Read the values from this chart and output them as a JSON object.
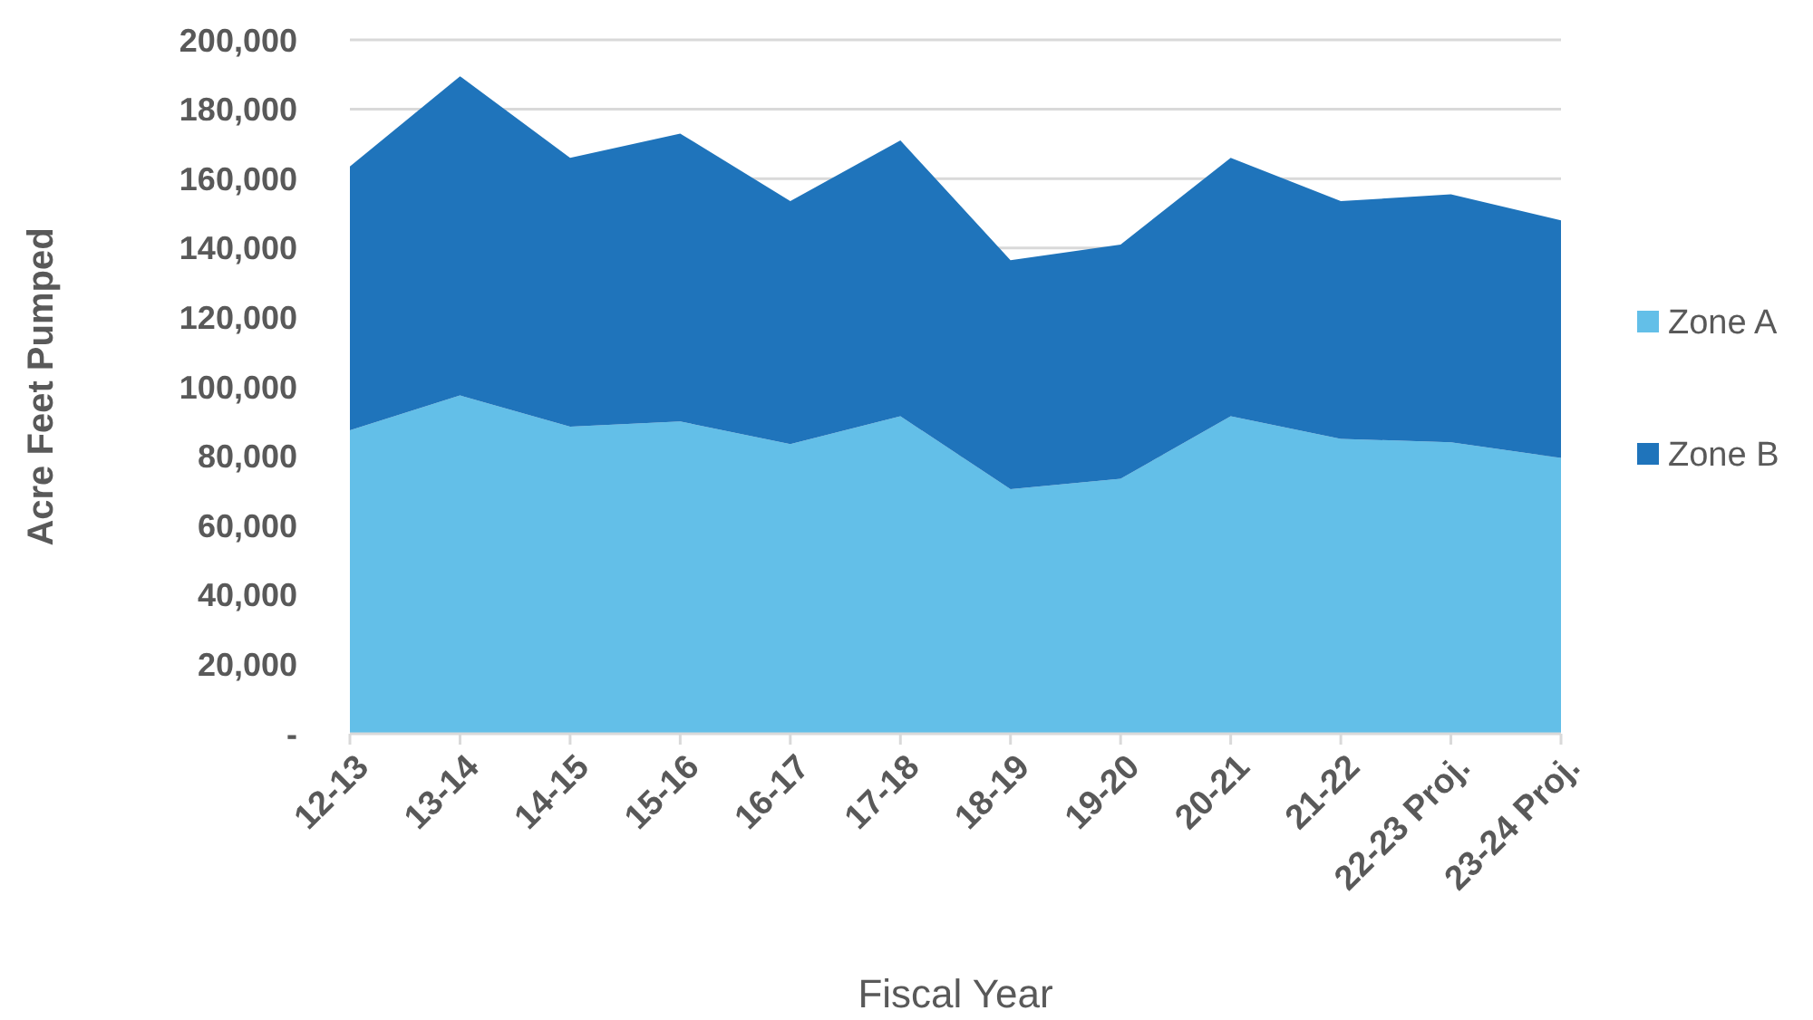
{
  "chart_data": {
    "type": "area",
    "stacked": true,
    "xlabel": "Fiscal Year",
    "ylabel": "Acre Feet Pumped",
    "categories": [
      "12-13",
      "13-14",
      "14-15",
      "15-16",
      "16-17",
      "17-18",
      "18-19",
      "19-20",
      "20-21",
      "21-22",
      "22-23 Proj.",
      "23-24 Proj."
    ],
    "series": [
      {
        "name": "Zone A",
        "color": "#63bfe8",
        "values": [
          87500,
          97500,
          88500,
          90000,
          83500,
          91500,
          70500,
          73500,
          91500,
          85000,
          84000,
          79500
        ]
      },
      {
        "name": "Zone B",
        "color": "#1f74bb",
        "values": [
          76000,
          92000,
          77500,
          83000,
          70000,
          79500,
          66000,
          67500,
          74500,
          68500,
          71500,
          68500
        ]
      }
    ],
    "ylim": [
      0,
      200000
    ],
    "yticks": [
      {
        "value": 0,
        "label": "-"
      },
      {
        "value": 20000,
        "label": "20,000"
      },
      {
        "value": 40000,
        "label": "40,000"
      },
      {
        "value": 60000,
        "label": "60,000"
      },
      {
        "value": 80000,
        "label": "80,000"
      },
      {
        "value": 100000,
        "label": "100,000"
      },
      {
        "value": 120000,
        "label": "120,000"
      },
      {
        "value": 140000,
        "label": "140,000"
      },
      {
        "value": 160000,
        "label": "160,000"
      },
      {
        "value": 180000,
        "label": "180,000"
      },
      {
        "value": 200000,
        "label": "200,000"
      }
    ],
    "grid": "y",
    "legend": "right"
  }
}
